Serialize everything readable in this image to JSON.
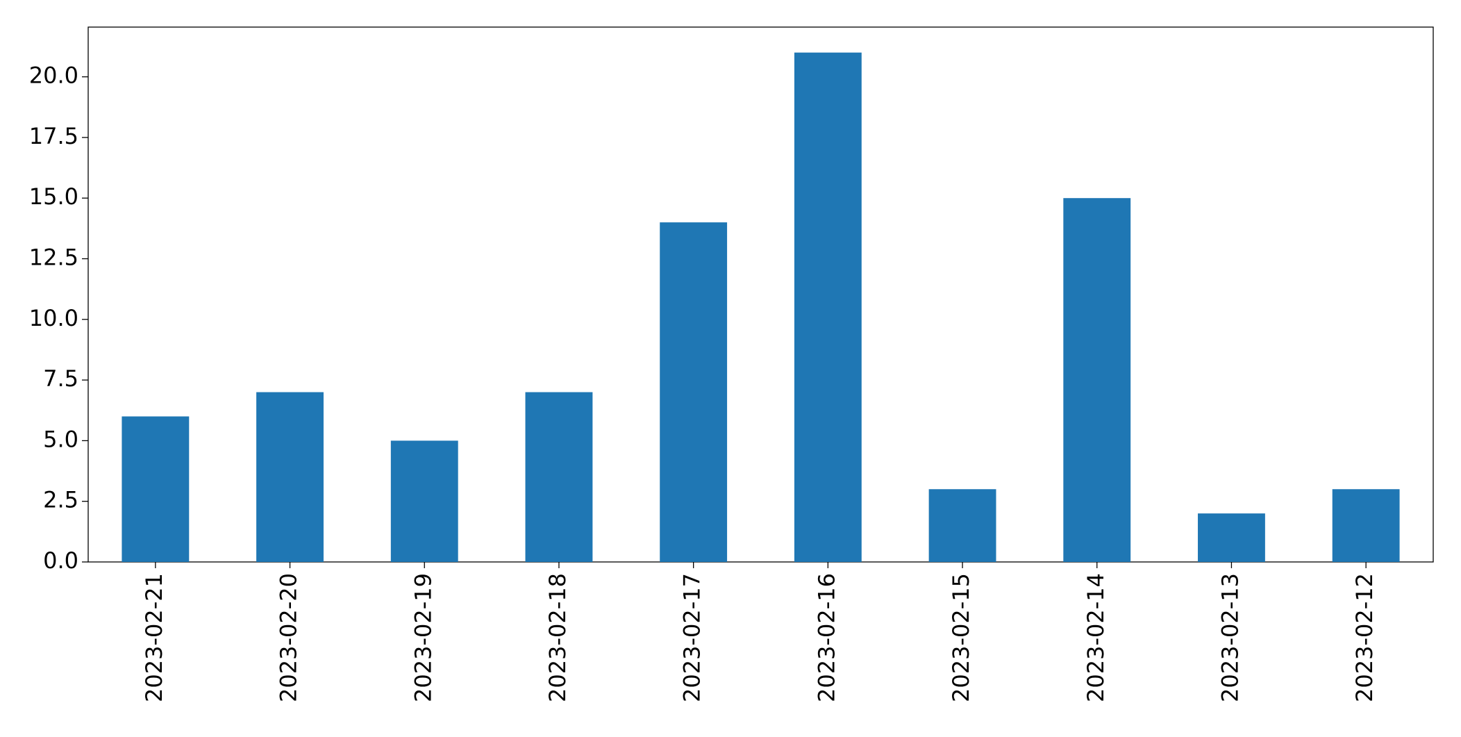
{
  "chart_data": {
    "type": "bar",
    "categories": [
      "2023-02-21",
      "2023-02-20",
      "2023-02-19",
      "2023-02-18",
      "2023-02-17",
      "2023-02-16",
      "2023-02-15",
      "2023-02-14",
      "2023-02-13",
      "2023-02-12"
    ],
    "values": [
      6,
      7,
      5,
      7,
      14,
      21,
      3,
      15,
      2,
      3
    ],
    "color": "#1f77b4",
    "ylim": [
      0,
      22.05
    ],
    "yticks": [
      {
        "value": 0,
        "label": "0.0"
      },
      2.5,
      {
        "value": 5,
        "label": "5.0"
      },
      7.5,
      {
        "value": 10,
        "label": "10.0"
      },
      12.5,
      {
        "value": 15,
        "label": "15.0"
      },
      17.5,
      {
        "value": 20,
        "label": "20.0"
      }
    ],
    "grid": false
  }
}
